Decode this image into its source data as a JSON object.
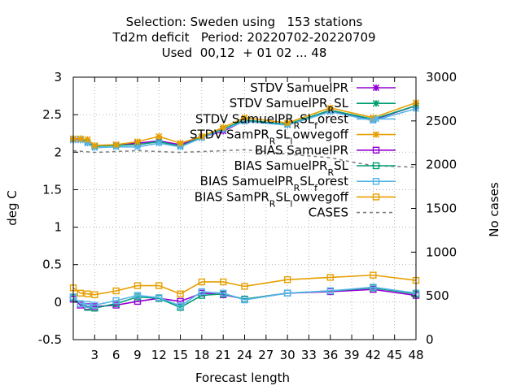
{
  "chart_data": {
    "type": "line",
    "title_lines": [
      "Selection: Sweden using   153 stations",
      "Td2m deficit   Period: 20220702-20220709",
      "Used  00,12  + 01 02 ... 48"
    ],
    "xlabel": "Forecast length",
    "ylabel": "deg C",
    "y2label": "No cases",
    "xlim": [
      0,
      48
    ],
    "ylim": [
      -0.5,
      3
    ],
    "y2lim": [
      0,
      3000
    ],
    "xticks": [
      3,
      6,
      9,
      12,
      15,
      18,
      21,
      24,
      27,
      30,
      33,
      36,
      39,
      42,
      45,
      48
    ],
    "yticks": [
      -0.5,
      0,
      0.5,
      1,
      1.5,
      2,
      2.5,
      3
    ],
    "ytick_labels": [
      "-0.5",
      "0",
      "0.5",
      "1",
      "1.5",
      "2",
      "2.5",
      "3"
    ],
    "y2ticks": [
      0,
      500,
      1000,
      1500,
      2000,
      2500,
      3000
    ],
    "grid": true,
    "legend_position": "top-right",
    "x": [
      0,
      1,
      2,
      3,
      6,
      9,
      12,
      15,
      18,
      21,
      24,
      30,
      36,
      42,
      48
    ],
    "series": [
      {
        "name": "STDV SamuelPR",
        "axis": "y1",
        "color": "#9400d3",
        "marker": "x",
        "dash": "",
        "values": [
          2.17,
          2.17,
          2.13,
          2.08,
          2.1,
          2.12,
          2.15,
          2.1,
          2.2,
          2.28,
          2.42,
          2.37,
          2.55,
          2.43,
          2.62
        ]
      },
      {
        "name_parts": [
          [
            "STDV SamuelPR",
            "base"
          ],
          [
            "R",
            "sub"
          ],
          [
            "SL",
            "base"
          ]
        ],
        "axis": "y1",
        "color": "#009e73",
        "marker": "x",
        "dash": "",
        "values": [
          2.18,
          2.18,
          2.13,
          2.08,
          2.09,
          2.1,
          2.14,
          2.08,
          2.2,
          2.31,
          2.43,
          2.37,
          2.56,
          2.44,
          2.62
        ]
      },
      {
        "name_parts": [
          [
            "STDV SamuelPR",
            "base"
          ],
          [
            "R",
            "sub"
          ],
          [
            "SL",
            "base"
          ],
          [
            "f",
            "sub"
          ],
          [
            "orest",
            "base"
          ]
        ],
        "axis": "y1",
        "color": "#56b4e9",
        "marker": "x",
        "dash": "",
        "values": [
          2.16,
          2.16,
          2.12,
          2.06,
          2.07,
          2.07,
          2.12,
          2.07,
          2.19,
          2.3,
          2.41,
          2.36,
          2.54,
          2.42,
          2.58
        ]
      },
      {
        "name_parts": [
          [
            "STDV SamPR",
            "base"
          ],
          [
            "R",
            "sub"
          ],
          [
            "SL",
            "base"
          ],
          [
            "l",
            "sub"
          ],
          [
            "owvegoff",
            "base"
          ]
        ],
        "axis": "y1",
        "color": "#e69f00",
        "marker": "x",
        "dash": "",
        "values": [
          2.18,
          2.18,
          2.17,
          2.09,
          2.1,
          2.14,
          2.21,
          2.12,
          2.21,
          2.33,
          2.46,
          2.39,
          2.59,
          2.46,
          2.66
        ]
      },
      {
        "name": "BIAS SamuelPR",
        "axis": "y1",
        "color": "#9400d3",
        "marker": "square",
        "dash": "",
        "values": [
          0.04,
          -0.04,
          -0.06,
          -0.06,
          -0.04,
          0.01,
          0.05,
          0.01,
          0.12,
          0.1,
          0.04,
          0.12,
          0.14,
          0.17,
          0.09
        ]
      },
      {
        "name_parts": [
          [
            "BIAS SamuelPR",
            "base"
          ],
          [
            "R",
            "sub"
          ],
          [
            "SL",
            "base"
          ]
        ],
        "axis": "y1",
        "color": "#009e73",
        "marker": "square",
        "dash": "",
        "values": [
          0.06,
          -0.02,
          -0.07,
          -0.08,
          -0.02,
          0.07,
          0.05,
          -0.07,
          0.09,
          0.11,
          0.04,
          0.12,
          0.15,
          0.19,
          0.11
        ]
      },
      {
        "name_parts": [
          [
            "BIAS SamuelPR",
            "base"
          ],
          [
            "R",
            "sub"
          ],
          [
            "SL",
            "base"
          ],
          [
            "f",
            "sub"
          ],
          [
            "orest",
            "base"
          ]
        ],
        "axis": "y1",
        "color": "#56b4e9",
        "marker": "square",
        "dash": "",
        "values": [
          0.07,
          -0.02,
          -0.03,
          -0.04,
          0.02,
          0.09,
          0.06,
          -0.05,
          0.14,
          0.12,
          0.03,
          0.12,
          0.15,
          0.2,
          0.12
        ]
      },
      {
        "name_parts": [
          [
            "BIAS SamPR",
            "base"
          ],
          [
            "R",
            "sub"
          ],
          [
            "SL",
            "base"
          ],
          [
            "l",
            "sub"
          ],
          [
            "owvegoff",
            "base"
          ]
        ],
        "axis": "y1",
        "color": "#e69f00",
        "marker": "square",
        "dash": "",
        "values": [
          0.19,
          0.12,
          0.11,
          0.1,
          0.15,
          0.22,
          0.22,
          0.11,
          0.27,
          0.27,
          0.21,
          0.3,
          0.33,
          0.36,
          0.29
        ]
      },
      {
        "name": "CASES",
        "axis": "y2",
        "color": "#808080",
        "marker": "none",
        "dash": "4,4",
        "x": [
          0,
          3,
          6,
          9,
          12,
          15,
          18,
          21,
          24,
          27,
          30,
          33,
          36,
          39,
          42,
          45,
          48
        ],
        "values": [
          2160,
          2140,
          2150,
          2160,
          2150,
          2140,
          2150,
          2160,
          2170,
          2150,
          2120,
          2100,
          2080,
          2030,
          1990,
          1980,
          1970
        ]
      }
    ]
  }
}
